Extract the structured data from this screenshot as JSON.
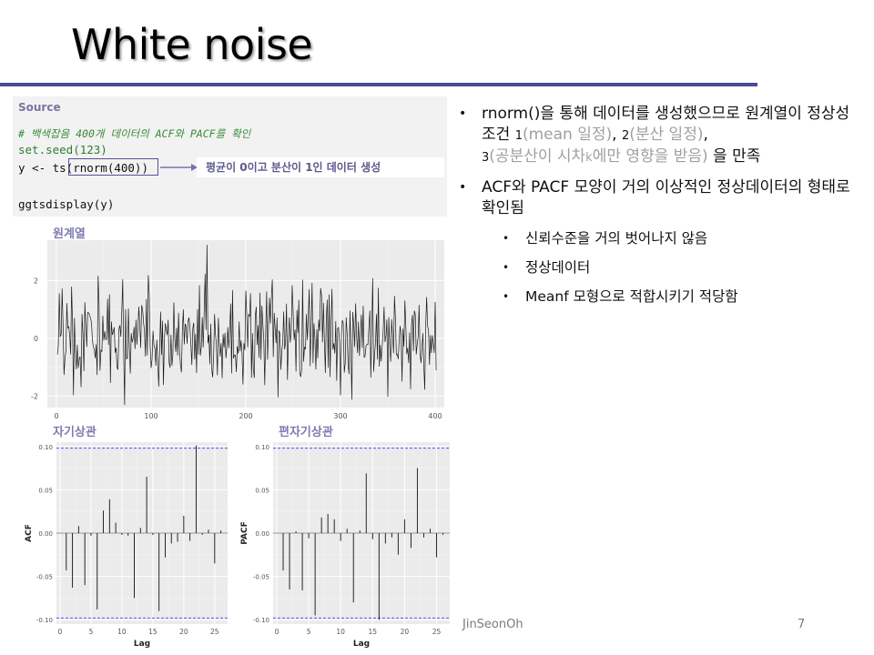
{
  "slide": {
    "title": "White noise",
    "author": "JinSeonOh",
    "page_number": "7",
    "accent_color": "#4b4b94"
  },
  "source": {
    "label": "Source",
    "comment": "# 백색잡음 400개 데이터의 ACF와 PACF를 확인",
    "line2": "set.seed(123)",
    "line3": "y <- ts(rnorm(400))",
    "line4": "ggtsdisplay(y)",
    "annotation": "평균이 0이고 분산이 1인 데이터 생성"
  },
  "panels": {
    "original": "원계열",
    "acf": "자기상관",
    "pacf": "편자기상관"
  },
  "bullets": {
    "b1_part1": "rnorm()을 통해 데이터를 생성했으므로 원계열이 정상성 조건 ",
    "b1_n1": "1",
    "b1_g1": "(mean 일정)",
    "b1_sep1": ", ",
    "b1_n2": "2",
    "b1_g2": "(분산 일정)",
    "b1_sep2": ", ",
    "b1_n3": "3",
    "b1_g3a": "(공분산이 시차",
    "b1_k": "k",
    "b1_g3b": "에만 영향을 받음)",
    "b1_end": " 을 만족",
    "b2": "ACF와 PACF 모양이 거의 이상적인 정상데이터의 형태로 확인됨",
    "sub1": "신뢰수준을 거의 벗어나지 않음",
    "sub2": "정상데이터",
    "sub3": "Meanf 모형으로 적합시키기 적당함"
  },
  "chart_data": [
    {
      "type": "line",
      "title": "",
      "xlabel": "",
      "ylabel": "",
      "xlim": [
        0,
        400
      ],
      "ylim": [
        -2.4,
        3.4
      ],
      "xticks": [
        0,
        100,
        200,
        300,
        400
      ],
      "yticks": [
        -2,
        0,
        2
      ],
      "grid": true,
      "n": 400,
      "x_start": 1,
      "values": [
        -0.56,
        -0.23,
        1.56,
        0.07,
        0.13,
        1.72,
        0.46,
        -1.27,
        -0.69,
        -0.45,
        1.22,
        0.36,
        0.4,
        0.11,
        -0.56,
        1.79,
        0.5,
        -1.97,
        0.7,
        -0.47,
        -1.07,
        -0.22,
        -1.03,
        -0.73,
        -0.63,
        -1.69,
        0.84,
        0.15,
        -1.14,
        1.25,
        0.43,
        -0.3,
        0.9,
        0.88,
        0.82,
        0.69,
        0.55,
        -0.06,
        -0.31,
        -0.38,
        -0.69,
        -0.21,
        -1.27,
        2.17,
        1.21,
        -1.12,
        -0.4,
        -0.47,
        0.78,
        -0.08,
        0.25,
        -0.03,
        -0.04,
        1.37,
        -0.23,
        1.52,
        -1.55,
        0.58,
        0.12,
        0.22,
        0.38,
        -0.5,
        -0.33,
        -1.02,
        -1.07,
        0.3,
        0.45,
        0.05,
        0.92,
        2.05,
        -0.49,
        -2.31,
        1.01,
        -0.71,
        -0.69,
        1.03,
        -0.28,
        -1.22,
        0.18,
        -0.14,
        0.01,
        0.39,
        -0.37,
        0.64,
        -0.22,
        0.33,
        1.1,
        0.44,
        -0.33,
        1.15,
        0.99,
        0.55,
        0.24,
        -0.63,
        1.36,
        -0.6,
        2.19,
        1.53,
        -0.24,
        -1.03,
        -0.71,
        0.26,
        -0.25,
        -0.35,
        -0.95,
        -0.05,
        -0.78,
        -1.67,
        -0.38,
        0.92,
        -0.58,
        0.61,
        -1.62,
        -0.06,
        0.52,
        0.3,
        0.11,
        0.64,
        -0.85,
        -1.02,
        0.12,
        -0.95,
        -0.54,
        1.24,
        -0.02,
        -0.47,
        0.36,
        -0.6,
        0.88,
        -0.44,
        -0.92,
        -1.18,
        0.27,
        1.0,
        -0.21,
        0.5,
        0.41,
        -0.19,
        0.59,
        0.72,
        0.35,
        -0.22,
        -0.92,
        0.34,
        0.54,
        -0.73,
        0.15,
        -1.2,
        1.01,
        -0.56,
        1.84,
        -0.6,
        -0.3,
        0.73,
        -0.31,
        0.89,
        2.23,
        0.29,
        3.24,
        -0.17,
        0.12,
        -0.9,
        0.5,
        -1.06,
        -1.35,
        -0.64,
        0.84,
        0.12,
        -0.25,
        -1.28,
        0.71,
        -0.15,
        -0.63,
        -0.17,
        -1.38,
        0.15,
        -0.32,
        0.19,
        -0.69,
        -0.3,
        0.39,
        -0.34,
        0.3,
        1.2,
        -1.22,
        1.67,
        -0.7,
        -0.58,
        -0.58,
        -1.17,
        -0.28,
        -0.53,
        0.58,
        -0.45,
        -0.08,
        -0.5,
        -1.6,
        -0.17,
        -0.41,
        1.65,
        0.82,
        -0.31,
        0.84,
        0.75,
        1.56,
        -1.37,
        0.18,
        -1.11,
        -1.37,
        0.78,
        1.09,
        -0.23,
        0.45,
        -0.67,
        1.58,
        -0.74,
        1.13,
        0.5,
        -0.06,
        -1.62,
        0.16,
        1.62,
        -0.74,
        0.48,
        1.4,
        0.51,
        1.41,
        2.04,
        -0.65,
        0.88,
        0.33,
        -0.17,
        0.72,
        -2.05,
        0.27,
        0.15,
        -1.09,
        -0.45,
        -0.15,
        0.93,
        -0.39,
        -0.14,
        1.2,
        -1.44,
        -0.02,
        0.72,
        -0.15,
        0.21,
        1.84,
        0.93,
        -0.06,
        0.3,
        -1.15,
        0.98,
        0.19,
        1.33,
        -1.19,
        -1.34,
        -1.09,
        2.03,
        -0.81,
        -0.3,
        -0.38,
        0.84,
        -0.06,
        0.8,
        1.7,
        -0.97,
        0.39,
        1.92,
        -0.86,
        0.52,
        -0.02,
        -1.08,
        0.31,
        -0.69,
        0.65,
        0.25,
        1.74,
        1.48,
        -0.14,
        1.23,
        -0.09,
        -1.2,
        0.69,
        1.34,
        -1.02,
        1.52,
        -1.34,
        0.56,
        1.71,
        -0.39,
        -0.17,
        -0.53,
        0.6,
        -1.47,
        0.34,
        0.37,
        -0.18,
        -1.98,
        0.17,
        0.63,
        0.5,
        -1.19,
        -0.88,
        0.72,
        0.19,
        -0.9,
        -1.24,
        0.96,
        -0.4,
        -2.13,
        0.91,
        0.46,
        -0.3,
        1.21,
        0.11,
        -0.51,
        0.58,
        -0.61,
        0.09,
        0.82,
        -0.33,
        1.13,
        -0.67,
        -0.6,
        -0.27,
        -0.21,
        -0.22,
        0.38,
        0.96,
        -1.36,
        0.27,
        2.08,
        -1.16,
        -0.58,
        -0.12,
        0.84,
        -0.73,
        1.75,
        -0.98,
        -0.23,
        -0.8,
        -0.27,
        0.18,
        1.09,
        -0.13,
        0.08,
        0.65,
        -2.03,
        0.73,
        -0.28,
        -0.81,
        0.66,
        0.09,
        -0.52,
        1.47,
        0.71,
        -0.57,
        -0.56,
        -0.72,
        -0.04,
        0.43,
        0.08,
        -1.5,
        0.33,
        -0.29,
        1.31,
        0.42,
        -0.55,
        -0.33,
        -0.86,
        0.2,
        -1.76,
        0.47,
        0.81,
        -0.44,
        0.96,
        0.83,
        -0.56,
        -0.21,
        0.05,
        1.16,
        -0.51,
        -0.86,
        -0.35,
        0.18,
        -0.99,
        -1.78,
        0.46,
        1.43,
        0.42,
        0.27,
        -0.92,
        0.11,
        -0.51,
        0.1,
        -0.16,
        -0.51,
        1.26,
        -1.11
      ]
    },
    {
      "type": "bar",
      "title": "",
      "xlabel": "Lag",
      "ylabel": "ACF",
      "xlim": [
        0,
        26.5
      ],
      "ylim": [
        -0.105,
        0.105
      ],
      "xticks": [
        0,
        5,
        10,
        15,
        20,
        25
      ],
      "yticks": [
        -0.1,
        -0.05,
        0.0,
        0.05,
        0.1
      ],
      "ci": 0.098,
      "grid": true,
      "lags": [
        1,
        2,
        3,
        4,
        5,
        6,
        7,
        8,
        9,
        10,
        11,
        12,
        13,
        14,
        15,
        16,
        17,
        18,
        19,
        20,
        21,
        22,
        23,
        24,
        25,
        26
      ],
      "values": [
        -0.043,
        -0.063,
        0.008,
        -0.06,
        -0.003,
        -0.088,
        0.026,
        0.039,
        0.012,
        -0.002,
        -0.003,
        -0.075,
        0.006,
        0.065,
        -0.002,
        -0.09,
        -0.028,
        -0.012,
        -0.01,
        0.02,
        -0.009,
        0.101,
        -0.002,
        0.004,
        -0.035,
        0.003
      ]
    },
    {
      "type": "bar",
      "title": "",
      "xlabel": "Lag",
      "ylabel": "PACF",
      "xlim": [
        0,
        26.5
      ],
      "ylim": [
        -0.105,
        0.105
      ],
      "xticks": [
        0,
        5,
        10,
        15,
        20,
        25
      ],
      "yticks": [
        -0.1,
        -0.05,
        0.0,
        0.05,
        0.1
      ],
      "ci": 0.098,
      "grid": true,
      "lags": [
        1,
        2,
        3,
        4,
        5,
        6,
        7,
        8,
        9,
        10,
        11,
        12,
        13,
        14,
        15,
        16,
        17,
        18,
        19,
        20,
        21,
        22,
        23,
        24,
        25,
        26
      ],
      "values": [
        -0.043,
        -0.065,
        0.002,
        -0.066,
        -0.006,
        -0.095,
        0.018,
        0.022,
        0.016,
        -0.009,
        0.005,
        -0.08,
        0.003,
        0.069,
        -0.007,
        -0.1,
        -0.012,
        -0.005,
        -0.025,
        0.016,
        -0.017,
        0.075,
        -0.005,
        0.005,
        -0.028,
        -0.002
      ]
    }
  ]
}
